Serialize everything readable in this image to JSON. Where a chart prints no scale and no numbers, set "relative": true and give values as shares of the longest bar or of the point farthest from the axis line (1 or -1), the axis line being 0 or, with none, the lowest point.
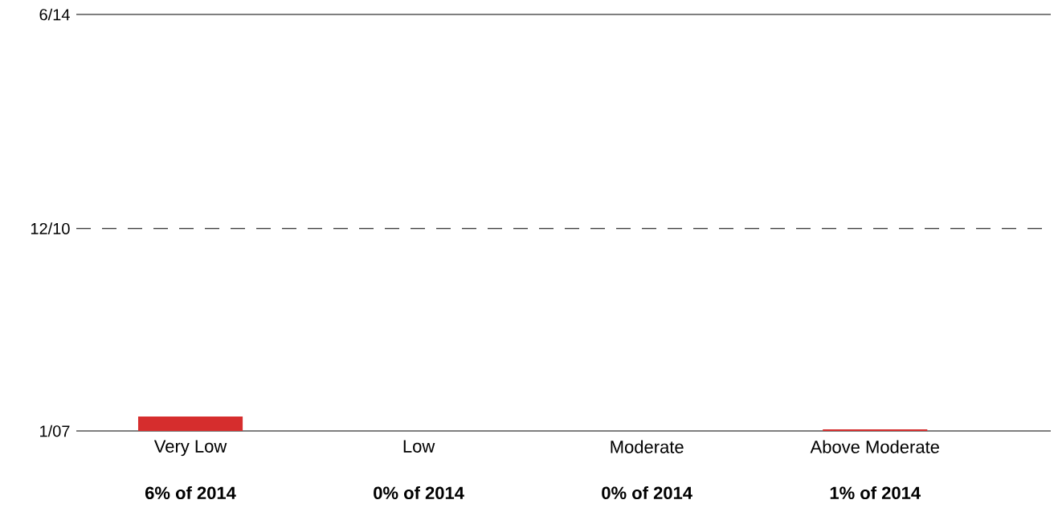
{
  "chart_data": {
    "type": "bar",
    "relative": true,
    "categories": [
      "Very Low",
      "Low",
      "Moderate",
      "Above Moderate"
    ],
    "values": [
      1,
      0,
      0,
      0.11
    ],
    "color": "#d62d2d",
    "ref_lines": [
      {
        "axis": "y",
        "value": 28.8
      },
      {
        "axis": "y",
        "value": 14,
        "line_style": "dashed"
      }
    ],
    "annotations": [
      "6/14",
      "12/10",
      "1/07",
      "6% of 2014",
      "0% of 2014",
      "0% of 2014",
      "1% of 2014"
    ]
  }
}
